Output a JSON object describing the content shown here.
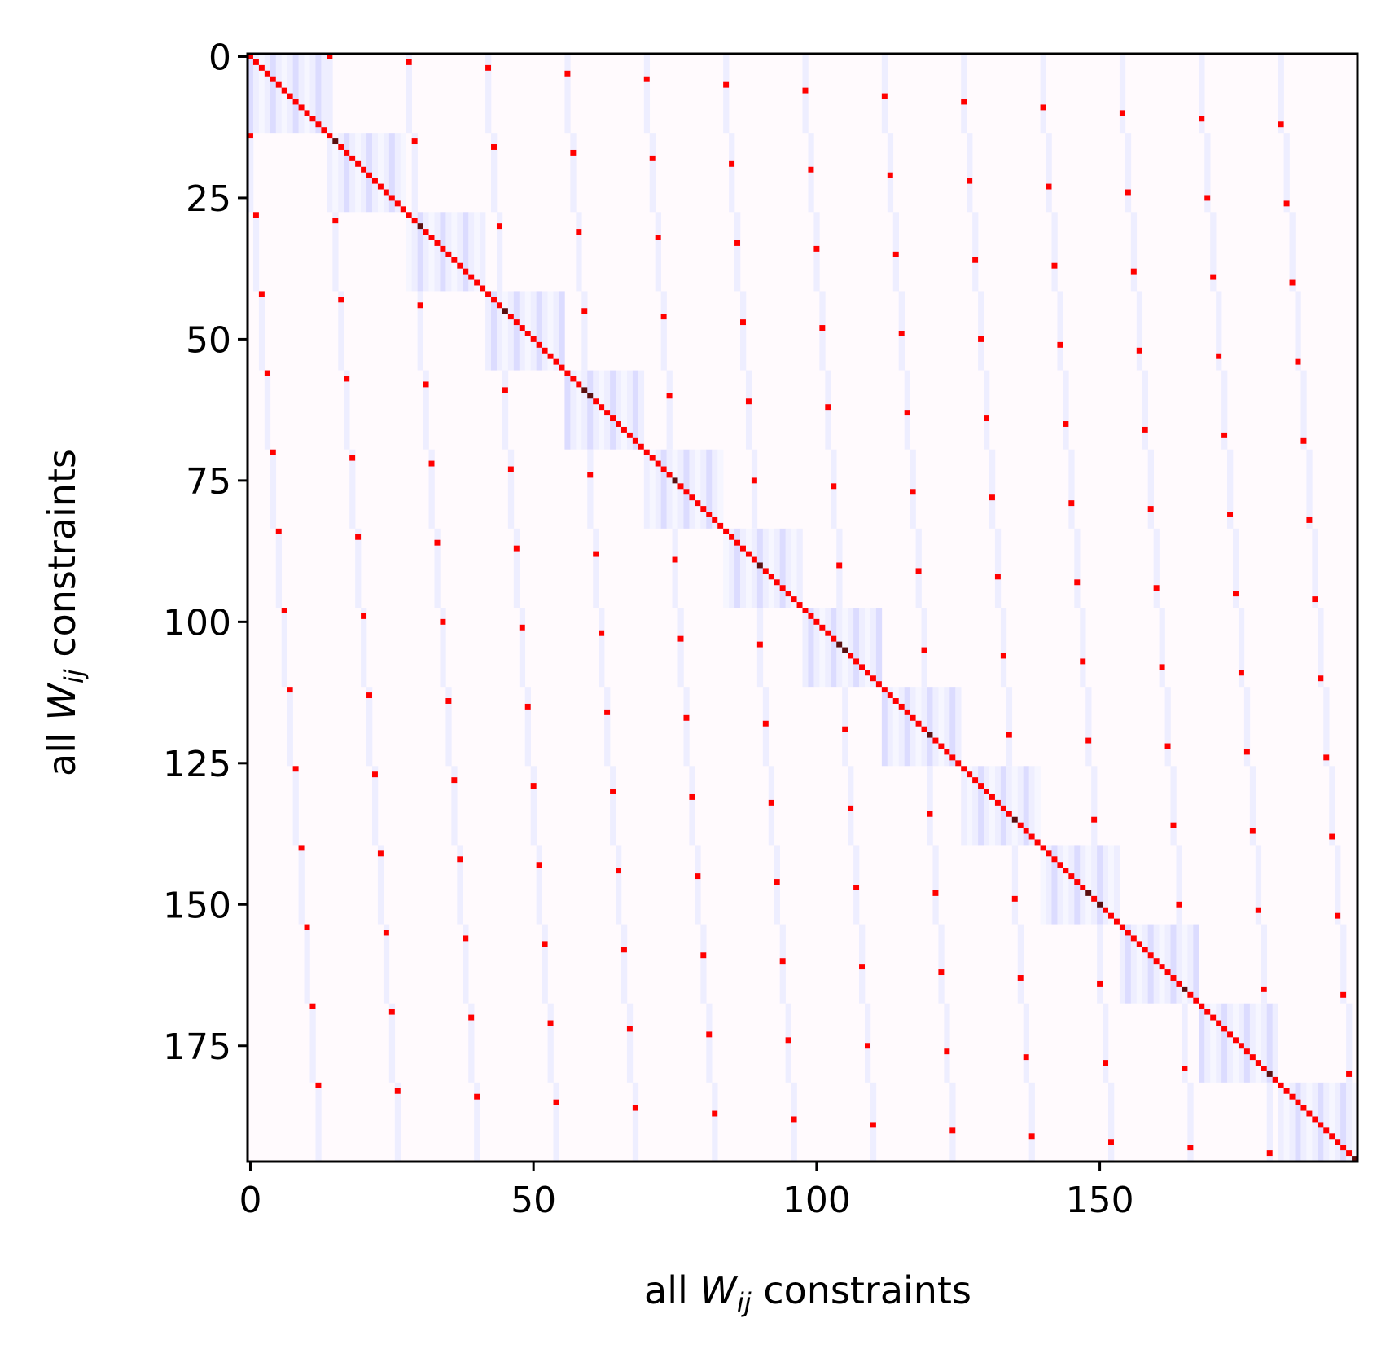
{
  "chart_data": {
    "type": "heatmap",
    "title": "",
    "xlabel": {
      "prefix": "all ",
      "symbol": "W",
      "subscript": "ij",
      "suffix": " constraints"
    },
    "ylabel": {
      "prefix": "all ",
      "symbol": "W",
      "subscript": "ij",
      "suffix": " constraints"
    },
    "n": 196,
    "block_size": 14,
    "num_blocks": 14,
    "xlim": [
      -0.5,
      195.5
    ],
    "ylim": [
      195.5,
      -0.5
    ],
    "xticks": [
      0,
      50,
      100,
      150
    ],
    "yticks": [
      0,
      25,
      50,
      75,
      100,
      125,
      150,
      175
    ],
    "grid": false,
    "legend": "none",
    "colors": {
      "background": "#fffafd",
      "diagonal": "#ff0000",
      "diagonal_dark": "#5a1010",
      "stripe_strong": "#dcdcff",
      "stripe_light": "#eeeeff",
      "stripe_faint": "#f6f6ff"
    },
    "structure": {
      "diagonal_value": "red along main diagonal",
      "diagonal_blocks": "14 blocks of 14×14 with light-blue vertical stripes",
      "off_block_dots": "one red dot per off-diagonal block at (i, block(i)·14 + block(j) offset)",
      "off_block_stripes": "thin light-blue vertical segments in each off-diagonal block"
    }
  }
}
